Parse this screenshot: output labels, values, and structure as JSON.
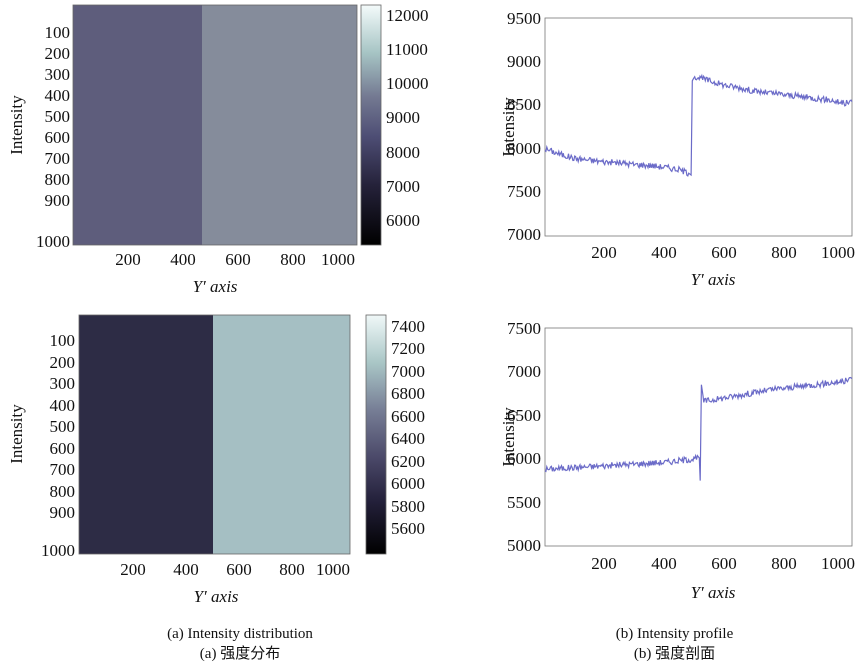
{
  "captions": {
    "left_en": "(a) Intensity distribution",
    "left_cn": "(a)  强度分布",
    "right_en": "(b) Intensity profile",
    "right_cn": "(b)  强度剖面"
  },
  "colors": {
    "profile_line": "#6b6bc8",
    "axis": "#444444",
    "text": "#111111"
  },
  "chart_data": [
    {
      "type": "heatmap",
      "title": "",
      "xlabel": "Y′ axis",
      "ylabel": "Intensity",
      "x_ticks": [
        "200",
        "400",
        "600",
        "800",
        "1000"
      ],
      "y_ticks": [
        "100",
        "200",
        "300",
        "400",
        "500",
        "600",
        "700",
        "800",
        "900",
        "1000"
      ],
      "xlim": [
        1,
        1024
      ],
      "ylim": [
        1,
        1024
      ],
      "regions": [
        {
          "x_start": 1,
          "x_end": 490,
          "value": 8100
        },
        {
          "x_start": 490,
          "x_end": 1024,
          "value": 8700
        }
      ],
      "colorbar": {
        "ticks": [
          "12000",
          "11000",
          "10000",
          "9000",
          "8000",
          "7000",
          "6000"
        ],
        "range": [
          5500,
          12200
        ]
      }
    },
    {
      "type": "line",
      "title": "",
      "xlabel": "Y′ axis",
      "ylabel": "Intensity",
      "x_ticks": [
        "200",
        "400",
        "600",
        "800",
        "1000"
      ],
      "y_ticks": [
        "9500",
        "9000",
        "8500",
        "8000",
        "7500",
        "7000"
      ],
      "xlim": [
        1,
        1024
      ],
      "ylim": [
        7000,
        9500
      ],
      "series": [
        {
          "x": [
            1,
            50,
            100,
            150,
            200,
            250,
            300,
            350,
            400,
            450,
            480,
            488,
            492,
            500,
            550,
            600,
            650,
            700,
            750,
            800,
            850,
            900,
            950,
            1000,
            1024
          ],
          "values": [
            8000,
            7940,
            7890,
            7870,
            7850,
            7840,
            7820,
            7810,
            7790,
            7760,
            7720,
            7700,
            8780,
            8830,
            8780,
            8730,
            8700,
            8660,
            8640,
            8620,
            8600,
            8580,
            8560,
            8520,
            8540
          ]
        }
      ]
    },
    {
      "type": "heatmap",
      "title": "",
      "xlabel": "Y′ axis",
      "ylabel": "Intensity",
      "x_ticks": [
        "200",
        "400",
        "600",
        "800",
        "1000"
      ],
      "y_ticks": [
        "100",
        "200",
        "300",
        "400",
        "500",
        "600",
        "700",
        "800",
        "900",
        "1000"
      ],
      "xlim": [
        1,
        1024
      ],
      "ylim": [
        1,
        1024
      ],
      "regions": [
        {
          "x_start": 1,
          "x_end": 520,
          "value": 5950
        },
        {
          "x_start": 520,
          "x_end": 1024,
          "value": 6800
        }
      ],
      "colorbar": {
        "ticks": [
          "7400",
          "7200",
          "7000",
          "6800",
          "6600",
          "6400",
          "6200",
          "6000",
          "5800",
          "5600"
        ],
        "range": [
          5500,
          7500
        ]
      }
    },
    {
      "type": "line",
      "title": "",
      "xlabel": "Y′ axis",
      "ylabel": "Intensity",
      "x_ticks": [
        "200",
        "400",
        "600",
        "800",
        "1000"
      ],
      "y_ticks": [
        "7500",
        "7000",
        "6500",
        "6000",
        "5500",
        "5000"
      ],
      "xlim": [
        1,
        1024
      ],
      "ylim": [
        5000,
        7500
      ],
      "series": [
        {
          "x": [
            1,
            50,
            100,
            150,
            200,
            250,
            300,
            350,
            400,
            450,
            500,
            515,
            518,
            522,
            530,
            600,
            650,
            700,
            750,
            800,
            850,
            900,
            950,
            1000,
            1024
          ],
          "values": [
            5880,
            5890,
            5900,
            5910,
            5920,
            5930,
            5940,
            5950,
            5960,
            5980,
            6000,
            6010,
            5750,
            6850,
            6660,
            6700,
            6730,
            6760,
            6790,
            6810,
            6830,
            6850,
            6870,
            6890,
            6920
          ]
        }
      ]
    }
  ]
}
